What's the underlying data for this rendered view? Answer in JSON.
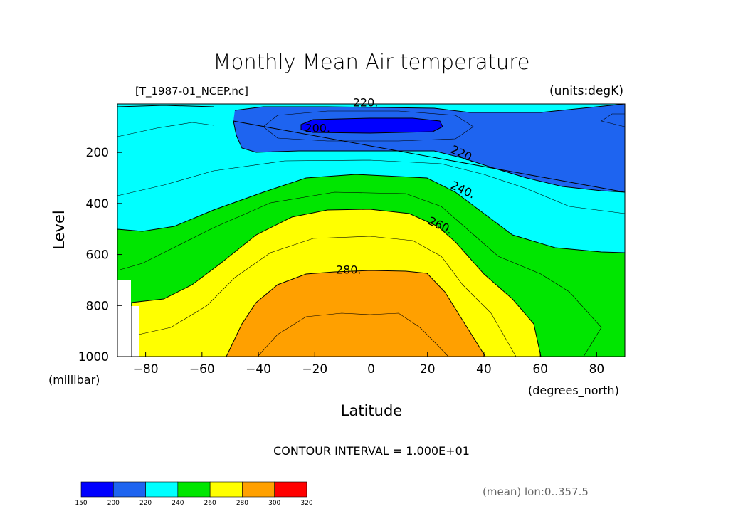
{
  "chart_data": {
    "type": "contour",
    "title": "Monthly Mean Air temperature",
    "file_label": "[T_1987-01_NCEP.nc]",
    "units_label": "(units:degK)",
    "xlabel": "Latitude",
    "x_units": "(degrees_north)",
    "ylabel": "Level",
    "y_units": "(millibar)",
    "xlim": [
      -90,
      90
    ],
    "ylim": [
      1000,
      10
    ],
    "x_ticks": [
      -80,
      -60,
      -40,
      -20,
      0,
      20,
      40,
      60,
      80
    ],
    "x_tick_labels": [
      "−80",
      "−60",
      "−40",
      "−20",
      "0",
      "20",
      "40",
      "60",
      "80"
    ],
    "y_ticks": [
      200,
      400,
      600,
      800,
      1000
    ],
    "y_tick_labels": [
      "200",
      "400",
      "600",
      "800",
      "1000"
    ],
    "contour_interval_text": "CONTOUR INTERVAL = 1.000E+01",
    "footnote": "(mean) lon:0..357.5",
    "contour_labels": [
      {
        "text": "220.",
        "lat": -2,
        "level": 20
      },
      {
        "text": "200.",
        "lat": -19,
        "level": 120
      },
      {
        "text": "220.",
        "lat": 32,
        "level": 220
      },
      {
        "text": "240.",
        "lat": 32,
        "level": 360
      },
      {
        "text": "260.",
        "lat": 24,
        "level": 500
      },
      {
        "text": "280.",
        "lat": -8,
        "level": 675
      }
    ],
    "contour_lines": [
      {
        "value": 200,
        "lat": [
          -25,
          -20,
          -10,
          0,
          10,
          20,
          25,
          20,
          0,
          -20,
          -25
        ],
        "level": [
          95,
          80,
          70,
          70,
          70,
          75,
          95,
          110,
          115,
          110,
          95
        ]
      },
      {
        "value": 220,
        "lat": [
          -90,
          -75,
          -55,
          -48,
          -30,
          0,
          20,
          32,
          45,
          60,
          75,
          90
        ],
        "level": [
          20,
          20,
          20,
          60,
          30,
          20,
          20,
          220,
          280,
          330,
          355,
          340
        ]
      },
      {
        "value": 240,
        "lat": [
          -90,
          -80,
          -65,
          -50,
          -30,
          -10,
          10,
          30,
          45,
          58,
          75,
          90
        ],
        "level": [
          500,
          505,
          440,
          370,
          280,
          250,
          260,
          360,
          440,
          530,
          580,
          590
        ]
      },
      {
        "value": 260,
        "lat": [
          -88,
          -80,
          -68,
          -55,
          -40,
          -20,
          0,
          20,
          30,
          45,
          60
        ],
        "level": [
          790,
          780,
          720,
          620,
          500,
          430,
          420,
          435,
          520,
          800,
          1000
        ]
      },
      {
        "value": 280,
        "lat": [
          -50,
          -45,
          -38,
          -25,
          -10,
          10,
          20,
          30,
          40
        ],
        "level": [
          1000,
          860,
          750,
          690,
          670,
          660,
          670,
          850,
          1000
        ]
      }
    ],
    "colorbar": {
      "boundaries": [
        "150",
        "200",
        "220",
        "240",
        "260",
        "280",
        "300",
        "320"
      ],
      "colors": [
        "#0000ff",
        "#1e64f0",
        "#00ffff",
        "#00e600",
        "#ffff00",
        "#ffa000",
        "#ff0000"
      ]
    }
  }
}
